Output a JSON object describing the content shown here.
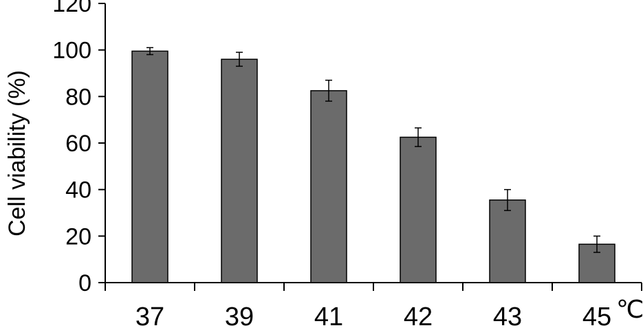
{
  "chart_data": {
    "type": "bar",
    "title": "",
    "xlabel": "",
    "x_unit": "℃",
    "ylabel": "Cell viability (%)",
    "ylim": [
      0,
      120
    ],
    "yticks": [
      0,
      20,
      40,
      60,
      80,
      100,
      120
    ],
    "grid": false,
    "categories": [
      "37",
      "39",
      "41",
      "42",
      "43",
      "45"
    ],
    "values": [
      99.5,
      96,
      82.5,
      62.5,
      35.5,
      16.5
    ],
    "errors": [
      1.5,
      3,
      4.5,
      4,
      4.5,
      3.5
    ],
    "colors": {
      "bar": "#6b6b6b",
      "axis": "#000000"
    }
  }
}
